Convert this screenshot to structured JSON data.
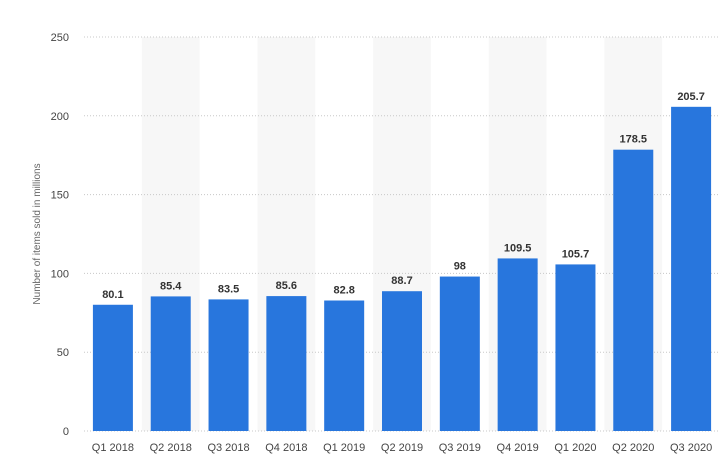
{
  "chart_data": {
    "type": "bar",
    "categories": [
      "Q1 2018",
      "Q2 2018",
      "Q3 2018",
      "Q4 2018",
      "Q1 2019",
      "Q2 2019",
      "Q3 2019",
      "Q4 2019",
      "Q1 2020",
      "Q2 2020",
      "Q3 2020"
    ],
    "values": [
      80.1,
      85.4,
      83.5,
      85.6,
      82.8,
      88.7,
      98,
      109.5,
      105.7,
      178.5,
      205.7
    ],
    "value_labels": [
      "80.1",
      "85.4",
      "83.5",
      "85.6",
      "82.8",
      "88.7",
      "98",
      "109.5",
      "105.7",
      "178.5",
      "205.7"
    ],
    "ylabel": "Number of items sold in millions",
    "ylim": [
      0,
      250
    ],
    "yticks": [
      0,
      50,
      100,
      150,
      200,
      250
    ],
    "grid": true,
    "bar_color": "#2876dd",
    "band_color": "#f7f7f7"
  }
}
